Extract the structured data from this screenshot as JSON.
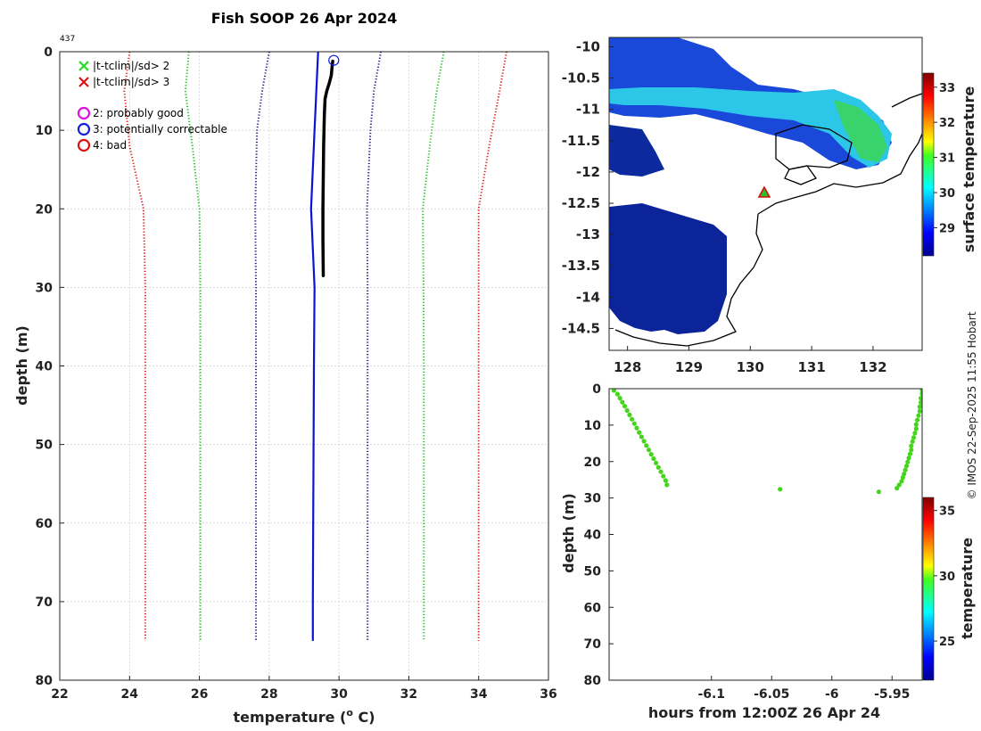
{
  "profile": {
    "title": "Fish SOOP 26 Apr 2024",
    "profile_id": "437",
    "xlabel": "temperature (",
    "xlabel_sup": "o",
    "xlabel_end": " C)",
    "ylabel": "depth (m)",
    "xlim": [
      22,
      36
    ],
    "ylim": [
      0,
      80
    ],
    "xticks": [
      22,
      24,
      26,
      28,
      30,
      32,
      34,
      36
    ],
    "yticks": [
      0,
      10,
      20,
      30,
      40,
      50,
      60,
      70,
      80
    ],
    "legend": [
      {
        "label": "|t-tclim|/sd> 2",
        "marker": "x",
        "color": "#22dd22"
      },
      {
        "label": "|t-tclim|/sd> 3",
        "marker": "x",
        "color": "#e01010"
      },
      {
        "label": "2: probably good",
        "marker": "o",
        "color": "#e010e0"
      },
      {
        "label": "3: potentially correctable",
        "marker": "o",
        "color": "#1020e0"
      },
      {
        "label": "4: bad",
        "marker": "o",
        "color": "#e01010"
      }
    ]
  },
  "chart_data": [
    {
      "type": "line",
      "title": "Fish SOOP 26 Apr 2024",
      "xlabel": "temperature (o C)",
      "ylabel": "depth (m)",
      "xlim": [
        22,
        36
      ],
      "ylim": [
        0,
        80
      ],
      "grid": true,
      "series": [
        {
          "name": "climatology mean",
          "color": "#0a14d2",
          "style": "solid",
          "points": [
            [
              29.4,
              0
            ],
            [
              29.3,
              10
            ],
            [
              29.2,
              20
            ],
            [
              29.3,
              30
            ],
            [
              29.28,
              40
            ],
            [
              29.27,
              50
            ],
            [
              29.26,
              60
            ],
            [
              29.25,
              70
            ],
            [
              29.25,
              75
            ]
          ]
        },
        {
          "name": "-1 sd",
          "color": "#1a1a8a",
          "style": "dotted",
          "points": [
            [
              28.0,
              0
            ],
            [
              27.8,
              5
            ],
            [
              27.65,
              10
            ],
            [
              27.6,
              20
            ],
            [
              27.62,
              30
            ],
            [
              27.62,
              40
            ],
            [
              27.62,
              50
            ],
            [
              27.62,
              60
            ],
            [
              27.62,
              70
            ],
            [
              27.62,
              75
            ]
          ]
        },
        {
          "name": "+1 sd",
          "color": "#1a1a8a",
          "style": "dotted",
          "points": [
            [
              31.2,
              0
            ],
            [
              31.0,
              5
            ],
            [
              30.9,
              10
            ],
            [
              30.8,
              20
            ],
            [
              30.82,
              30
            ],
            [
              30.82,
              40
            ],
            [
              30.82,
              50
            ],
            [
              30.82,
              60
            ],
            [
              30.82,
              70
            ],
            [
              30.82,
              75
            ]
          ]
        },
        {
          "name": "-2 sd",
          "color": "#22c022",
          "style": "dotted",
          "points": [
            [
              25.7,
              0
            ],
            [
              25.6,
              5
            ],
            [
              25.8,
              12
            ],
            [
              26.0,
              20
            ],
            [
              26.03,
              30
            ],
            [
              26.03,
              40
            ],
            [
              26.03,
              50
            ],
            [
              26.03,
              60
            ],
            [
              26.03,
              70
            ],
            [
              26.03,
              75
            ]
          ]
        },
        {
          "name": "+2 sd",
          "color": "#22c022",
          "style": "dotted",
          "points": [
            [
              33.0,
              0
            ],
            [
              32.8,
              5
            ],
            [
              32.6,
              12
            ],
            [
              32.4,
              20
            ],
            [
              32.42,
              30
            ],
            [
              32.43,
              40
            ],
            [
              32.43,
              50
            ],
            [
              32.43,
              60
            ],
            [
              32.43,
              70
            ],
            [
              32.43,
              75
            ]
          ]
        },
        {
          "name": "-3 sd",
          "color": "#dd1a1a",
          "style": "dotted",
          "points": [
            [
              24.0,
              0
            ],
            [
              23.85,
              5
            ],
            [
              24.0,
              12
            ],
            [
              24.4,
              20
            ],
            [
              24.45,
              30
            ],
            [
              24.45,
              40
            ],
            [
              24.45,
              50
            ],
            [
              24.45,
              60
            ],
            [
              24.45,
              70
            ],
            [
              24.45,
              75
            ]
          ]
        },
        {
          "name": "+3 sd",
          "color": "#dd1a1a",
          "style": "dotted",
          "points": [
            [
              34.8,
              0
            ],
            [
              34.6,
              5
            ],
            [
              34.3,
              12
            ],
            [
              34.0,
              20
            ],
            [
              34.0,
              30
            ],
            [
              34.0,
              40
            ],
            [
              34.0,
              50
            ],
            [
              34.0,
              60
            ],
            [
              34.0,
              70
            ],
            [
              34.0,
              75
            ]
          ]
        },
        {
          "name": "observed profile",
          "color": "#000000",
          "style": "solid-thick",
          "points": [
            [
              29.82,
              1.2
            ],
            [
              29.8,
              2
            ],
            [
              29.78,
              3
            ],
            [
              29.72,
              4
            ],
            [
              29.65,
              5
            ],
            [
              29.6,
              6
            ],
            [
              29.58,
              8
            ],
            [
              29.56,
              12
            ],
            [
              29.55,
              16
            ],
            [
              29.54,
              20
            ],
            [
              29.54,
              24
            ],
            [
              29.55,
              28.5
            ]
          ]
        }
      ],
      "annotations": [
        {
          "type": "circle",
          "x": 29.85,
          "y": 1.1,
          "color": "#1020e0",
          "meaning": "3: potentially correctable"
        }
      ]
    },
    {
      "type": "heatmap",
      "xlim": [
        127.7,
        132.8
      ],
      "ylim": [
        -14.85,
        -9.85
      ],
      "xticks": [
        128,
        129,
        130,
        131,
        132
      ],
      "yticks": [
        -10,
        -10.5,
        -11,
        -11.5,
        -12,
        -12.5,
        -13,
        -13.5,
        -14,
        -14.5
      ],
      "colorbar": {
        "label": "surface temperature",
        "min": 28.2,
        "max": 33.4,
        "ticks": [
          29,
          30,
          31,
          32,
          33
        ]
      },
      "marker": {
        "lon": 130.2,
        "lat": -12.35,
        "symbol": "triangle",
        "color": "#e01010"
      }
    },
    {
      "type": "scatter",
      "xlabel": "hours from 12:00Z 26 Apr 24",
      "ylabel": "depth (m)",
      "xlim": [
        -6.185,
        -5.925
      ],
      "ylim": [
        0,
        80
      ],
      "xticks": [
        -6.1,
        -6.05,
        -6,
        -5.95
      ],
      "xtick_labels": [
        "-6.1",
        "-6.05",
        "-6",
        "-5.95"
      ],
      "yticks": [
        0,
        10,
        20,
        30,
        40,
        50,
        60,
        70,
        80
      ],
      "colorbar": {
        "label": "temperature",
        "min": 22,
        "max": 36,
        "ticks": [
          25,
          30,
          35
        ]
      },
      "color_value": 29.6,
      "points": [
        [
          -6.181,
          0.5
        ],
        [
          -6.178,
          1.5
        ],
        [
          -6.176,
          2.6
        ],
        [
          -6.174,
          3.7
        ],
        [
          -6.172,
          4.8
        ],
        [
          -6.17,
          6
        ],
        [
          -6.168,
          7.2
        ],
        [
          -6.166,
          8.4
        ],
        [
          -6.164,
          9.6
        ],
        [
          -6.162,
          10.8
        ],
        [
          -6.16,
          12
        ],
        [
          -6.158,
          13.2
        ],
        [
          -6.156,
          14.4
        ],
        [
          -6.154,
          15.6
        ],
        [
          -6.152,
          16.8
        ],
        [
          -6.15,
          18
        ],
        [
          -6.148,
          19.2
        ],
        [
          -6.146,
          20.4
        ],
        [
          -6.144,
          21.6
        ],
        [
          -6.142,
          22.8
        ],
        [
          -6.14,
          24
        ],
        [
          -6.138,
          25.2
        ],
        [
          -6.137,
          26.4
        ],
        [
          -6.043,
          27.6
        ],
        [
          -5.961,
          28.3
        ],
        [
          -5.946,
          27.3
        ],
        [
          -5.944,
          26.4
        ],
        [
          -5.942,
          25.4
        ],
        [
          -5.941,
          24.4
        ],
        [
          -5.94,
          23.4
        ],
        [
          -5.939,
          22.3
        ],
        [
          -5.938,
          21.2
        ],
        [
          -5.937,
          20.1
        ],
        [
          -5.936,
          19
        ],
        [
          -5.935,
          17.9
        ],
        [
          -5.934,
          16.8
        ],
        [
          -5.934,
          15.7
        ],
        [
          -5.933,
          14.5
        ],
        [
          -5.932,
          13.4
        ],
        [
          -5.931,
          12.2
        ],
        [
          -5.93,
          11
        ],
        [
          -5.93,
          9.8
        ],
        [
          -5.929,
          8.6
        ],
        [
          -5.928,
          7.4
        ],
        [
          -5.927,
          6.2
        ],
        [
          -5.927,
          5
        ],
        [
          -5.926,
          3.8
        ],
        [
          -5.926,
          2.6
        ],
        [
          -5.925,
          1.4
        ],
        [
          -5.925,
          0.5
        ]
      ]
    }
  ],
  "map": {
    "yticks": [
      "-10",
      "-10.5",
      "-11",
      "-11.5",
      "-12",
      "-12.5",
      "-13",
      "-13.5",
      "-14",
      "-14.5"
    ],
    "xticks": [
      "128",
      "129",
      "130",
      "131",
      "132"
    ],
    "colorbar_label": "surface temperature",
    "colorbar_ticks": [
      "29",
      "30",
      "31",
      "32",
      "33"
    ]
  },
  "timeplot": {
    "xlabel": "hours from 12:00Z 26 Apr 24",
    "ylabel": "depth (m)",
    "colorbar_label": "temperature",
    "colorbar_ticks": [
      "25",
      "30",
      "35"
    ]
  },
  "credit": "© IMOS 22-Sep-2025 11:55 Hobart"
}
